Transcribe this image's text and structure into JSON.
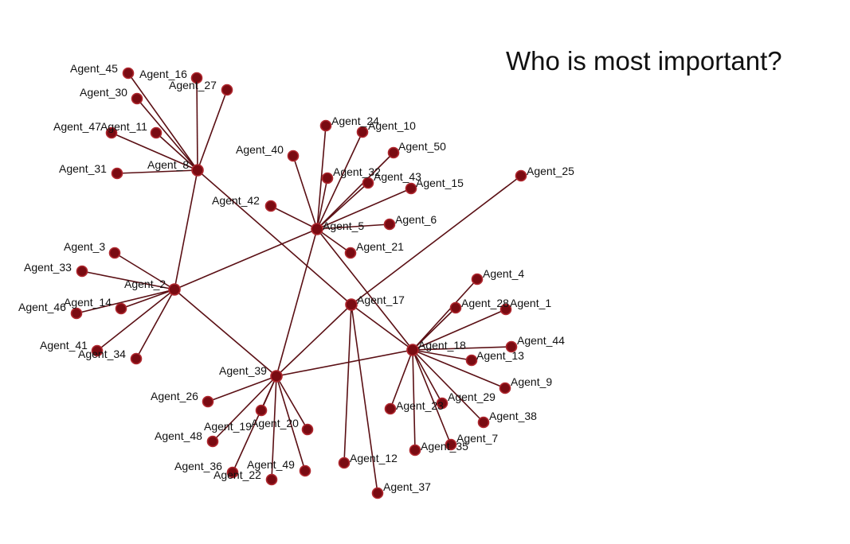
{
  "title": "Who is most important?",
  "colors": {
    "node": "#7a0b12",
    "edge": "#5a0f14",
    "node_outline": "#b0282f"
  },
  "nodes": [
    "Agent_45",
    "Agent_16",
    "Agent_27",
    "Agent_30",
    "Agent_47",
    "Agent_11",
    "Agent_31",
    "Agent_8",
    "Agent_24",
    "Agent_10",
    "Agent_40",
    "Agent_50",
    "Agent_32",
    "Agent_43",
    "Agent_15",
    "Agent_25",
    "Agent_42",
    "Agent_5",
    "Agent_6",
    "Agent_21",
    "Agent_3",
    "Agent_33",
    "Agent_2",
    "Agent_46",
    "Agent_14",
    "Agent_41",
    "Agent_34",
    "Agent_17",
    "Agent_4",
    "Agent_28",
    "Agent_1",
    "Agent_18",
    "Agent_44",
    "Agent_13",
    "Agent_9",
    "Agent_39",
    "Agent_26",
    "Agent_19",
    "Agent_20",
    "Agent_48",
    "Agent_29",
    "Agent_38",
    "Agent_23",
    "Agent_7",
    "Agent_35",
    "Agent_36",
    "Agent_22",
    "Agent_49",
    "Agent_12",
    "Agent_37"
  ],
  "edges": [
    [
      "Agent_8",
      "Agent_45"
    ],
    [
      "Agent_8",
      "Agent_16"
    ],
    [
      "Agent_8",
      "Agent_27"
    ],
    [
      "Agent_8",
      "Agent_30"
    ],
    [
      "Agent_8",
      "Agent_47"
    ],
    [
      "Agent_8",
      "Agent_11"
    ],
    [
      "Agent_8",
      "Agent_31"
    ],
    [
      "Agent_8",
      "Agent_2"
    ],
    [
      "Agent_8",
      "Agent_17"
    ],
    [
      "Agent_5",
      "Agent_24"
    ],
    [
      "Agent_5",
      "Agent_10"
    ],
    [
      "Agent_5",
      "Agent_40"
    ],
    [
      "Agent_5",
      "Agent_50"
    ],
    [
      "Agent_5",
      "Agent_32"
    ],
    [
      "Agent_5",
      "Agent_43"
    ],
    [
      "Agent_5",
      "Agent_15"
    ],
    [
      "Agent_5",
      "Agent_42"
    ],
    [
      "Agent_5",
      "Agent_6"
    ],
    [
      "Agent_5",
      "Agent_21"
    ],
    [
      "Agent_5",
      "Agent_2"
    ],
    [
      "Agent_5",
      "Agent_39"
    ],
    [
      "Agent_5",
      "Agent_18"
    ],
    [
      "Agent_2",
      "Agent_3"
    ],
    [
      "Agent_2",
      "Agent_33"
    ],
    [
      "Agent_2",
      "Agent_46"
    ],
    [
      "Agent_2",
      "Agent_14"
    ],
    [
      "Agent_2",
      "Agent_41"
    ],
    [
      "Agent_2",
      "Agent_34"
    ],
    [
      "Agent_2",
      "Agent_39"
    ],
    [
      "Agent_17",
      "Agent_25"
    ],
    [
      "Agent_17",
      "Agent_39"
    ],
    [
      "Agent_17",
      "Agent_12"
    ],
    [
      "Agent_17",
      "Agent_37"
    ],
    [
      "Agent_17",
      "Agent_18"
    ],
    [
      "Agent_18",
      "Agent_4"
    ],
    [
      "Agent_18",
      "Agent_28"
    ],
    [
      "Agent_18",
      "Agent_1"
    ],
    [
      "Agent_18",
      "Agent_44"
    ],
    [
      "Agent_18",
      "Agent_13"
    ],
    [
      "Agent_18",
      "Agent_9"
    ],
    [
      "Agent_18",
      "Agent_38"
    ],
    [
      "Agent_18",
      "Agent_29"
    ],
    [
      "Agent_18",
      "Agent_23"
    ],
    [
      "Agent_18",
      "Agent_7"
    ],
    [
      "Agent_18",
      "Agent_35"
    ],
    [
      "Agent_18",
      "Agent_39"
    ],
    [
      "Agent_39",
      "Agent_26"
    ],
    [
      "Agent_39",
      "Agent_48"
    ],
    [
      "Agent_39",
      "Agent_19"
    ],
    [
      "Agent_39",
      "Agent_20"
    ],
    [
      "Agent_39",
      "Agent_36"
    ],
    [
      "Agent_39",
      "Agent_22"
    ],
    [
      "Agent_39",
      "Agent_49"
    ]
  ]
}
